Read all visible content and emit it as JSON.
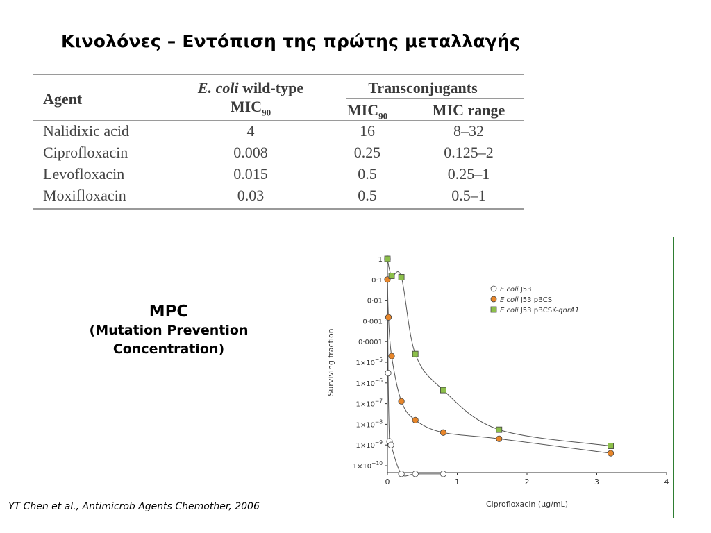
{
  "slide": {
    "title": "Κινολόνες – Εντόπιση της πρώτης μεταλλαγής",
    "mpc_title": "MPC",
    "mpc_line1": "(Mutation Prevention",
    "mpc_line2": "Concentration)",
    "citation": "YT Chen et al., Antimicrob Agents Chemother, 2006"
  },
  "table": {
    "header": {
      "agent": "Agent",
      "wild_type_italic": "E. coli",
      "wild_type_rest": " wild-type",
      "wild_type_mic": "MIC",
      "transconjugants": "Transconjugants",
      "trans_mic": "MIC",
      "mic_sub": "90",
      "mic_range": "MIC range"
    },
    "rows": [
      {
        "agent": "Nalidixic acid",
        "wt_mic90": "4",
        "trans_mic90": "16",
        "mic_range": "8–32"
      },
      {
        "agent": "Ciprofloxacin",
        "wt_mic90": "0.008",
        "trans_mic90": "0.25",
        "mic_range": "0.125–2"
      },
      {
        "agent": "Levofloxacin",
        "wt_mic90": "0.015",
        "trans_mic90": "0.5",
        "mic_range": "0.25–1"
      },
      {
        "agent": "Moxifloxacin",
        "wt_mic90": "0.03",
        "trans_mic90": "0.5",
        "mic_range": "0.5–1"
      }
    ]
  },
  "chart_data": {
    "type": "scatter",
    "xlabel": "Ciprofloxacin (μg/mL)",
    "ylabel": "Surviving fraction",
    "xlim": [
      0,
      4
    ],
    "ylim": [
      1e-10,
      1
    ],
    "yscale": "log",
    "x_ticks": [
      0,
      1,
      2,
      3,
      4
    ],
    "x_tick_labels": [
      "0",
      "1",
      "2",
      "3",
      "4"
    ],
    "y_ticks": [
      1,
      0.1,
      0.01,
      0.001,
      0.0001,
      1e-05,
      1e-06,
      1e-07,
      1e-08,
      1e-09,
      1e-10
    ],
    "y_tick_labels": [
      {
        "base": "1"
      },
      {
        "base": "0·1"
      },
      {
        "base": "0·01"
      },
      {
        "base": "0·001"
      },
      {
        "base": "0·0001"
      },
      {
        "base": "1×10",
        "exp": "−5"
      },
      {
        "base": "1×10",
        "exp": "−6"
      },
      {
        "base": "1×10",
        "exp": "−7"
      },
      {
        "base": "1×10",
        "exp": "−8"
      },
      {
        "base": "1×10",
        "exp": "−9"
      },
      {
        "base": "1×10",
        "exp": "−10"
      }
    ],
    "grid": false,
    "legend_position": "top-right",
    "series": [
      {
        "legend_italic": "E coli",
        "legend_rest": " J53",
        "marker": "circle-open",
        "color": "#ffffff",
        "x": [
          0,
          0.01,
          0.03,
          0.05,
          0.2,
          0.4,
          0.8
        ],
        "y": [
          1,
          3e-06,
          1.5e-09,
          1e-09,
          4e-11,
          4e-11,
          4e-11
        ]
      },
      {
        "legend_italic": "E coli",
        "legend_rest": " J53 pBCS",
        "marker": "circle-filled",
        "color": "#e8862a",
        "x": [
          0,
          0.015,
          0.06,
          0.2,
          0.4,
          0.8,
          1.6,
          3.2
        ],
        "y": [
          0.1,
          0.0015,
          2e-05,
          1.3e-07,
          1.6e-08,
          4e-09,
          2e-09,
          4e-10
        ]
      },
      {
        "legend_italic": "E coli",
        "legend_rest": " J53 pBCSK-",
        "legend_suffix_italic": "qnrA1",
        "marker": "square-filled",
        "color": "#8cbf4a",
        "x": [
          0,
          0.06,
          0.2,
          0.4,
          0.8,
          1.6,
          3.2
        ],
        "y": [
          1,
          0.15,
          0.13,
          2.5e-05,
          4.5e-07,
          5.5e-09,
          9e-10
        ]
      }
    ]
  }
}
